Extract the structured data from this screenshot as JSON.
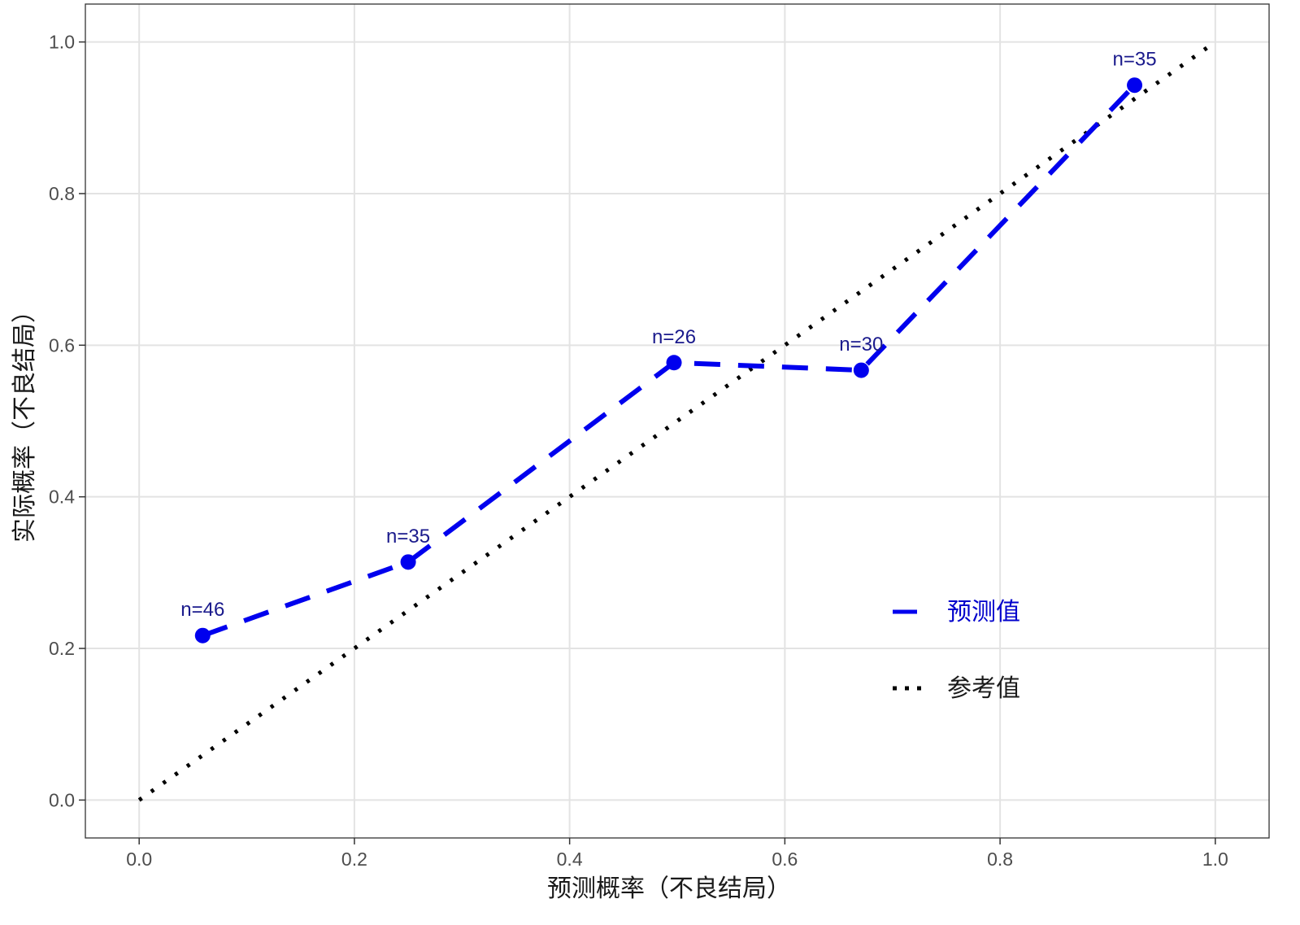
{
  "chart_data": {
    "type": "line",
    "xlabel": "预测概率（不良结局）",
    "ylabel": "实际概率（不良结局）",
    "xlim": [
      -0.05,
      1.05
    ],
    "ylim": [
      -0.05,
      1.05
    ],
    "x_ticks": [
      0.0,
      0.2,
      0.4,
      0.6,
      0.8,
      1.0
    ],
    "y_ticks": [
      0.0,
      0.2,
      0.4,
      0.6,
      0.8,
      1.0
    ],
    "x_tick_labels": [
      "0.0",
      "0.2",
      "0.4",
      "0.6",
      "0.8",
      "1.0"
    ],
    "y_tick_labels": [
      "0.0",
      "0.2",
      "0.4",
      "0.6",
      "0.8",
      "1.0"
    ],
    "grid": true,
    "legend_position": "inside-bottom-right",
    "series": [
      {
        "name": "预测值",
        "style": "dashed",
        "markers": true,
        "color": "#0000ee",
        "x": [
          0.059,
          0.25,
          0.497,
          0.671,
          0.925
        ],
        "y": [
          0.217,
          0.314,
          0.577,
          0.567,
          0.943
        ],
        "labels": [
          "n=46",
          "n=35",
          "n=26",
          "n=30",
          "n=35"
        ]
      },
      {
        "name": "参考值",
        "style": "dotted",
        "markers": false,
        "color": "#000000",
        "x": [
          0.0,
          1.0
        ],
        "y": [
          0.0,
          1.0
        ]
      }
    ]
  }
}
